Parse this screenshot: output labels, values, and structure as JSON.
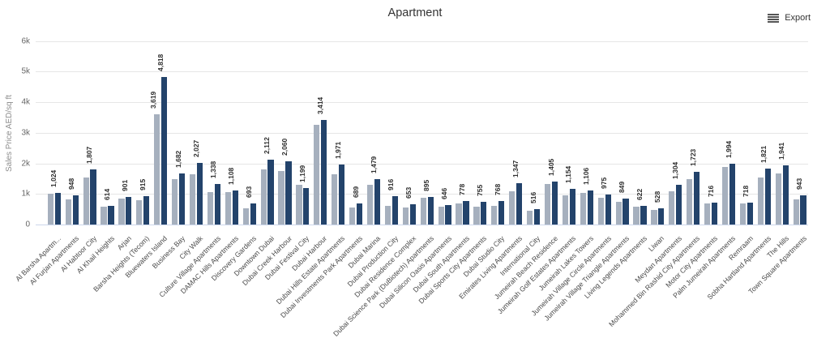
{
  "header": {
    "title": "Apartment",
    "export_label": "Export"
  },
  "chart_data": {
    "type": "bar",
    "title": "Apartment",
    "xlabel": "",
    "ylabel": "Sales Price AED/sq ft",
    "ylim": [
      0,
      6000
    ],
    "yticks": [
      {
        "value": 0,
        "label": "0"
      },
      {
        "value": 1000,
        "label": "1k"
      },
      {
        "value": 2000,
        "label": "2k"
      },
      {
        "value": 3000,
        "label": "3k"
      },
      {
        "value": 4000,
        "label": "4k"
      },
      {
        "value": 5000,
        "label": "5k"
      },
      {
        "value": 6000,
        "label": "6k"
      }
    ],
    "grid": true,
    "legend_position": "none",
    "categories": [
      "Al Barsha Apartm...",
      "Al Furjan Apartments",
      "Al Habtoor City",
      "Al Khail Heights",
      "Arjan",
      "Barsha Heights (Tecom)",
      "Bluewaters Island",
      "Business Bay",
      "City Walk",
      "Culture Village Apartments",
      "DAMAC Hills Apartments",
      "Discovery Gardens",
      "Downtown Dubai",
      "Dubai Creek Harbour",
      "Dubai Festival City",
      "Dubai Harbour",
      "Dubai Hills Estate Apartments",
      "Dubai Investments Park Apartments",
      "Dubai Marina",
      "Dubai Production City",
      "Dubai Residence Complex",
      "Dubai Science Park (DuBiotech) Apartments",
      "Dubai Silicon Oasis Apartments",
      "Dubai South Apartments",
      "Dubai Sports City Apartments",
      "Dubai Studio City",
      "Emirates Living Apartments",
      "International City",
      "Jumeirah Beach Residence",
      "Jumeirah Golf Estates Apartments",
      "Jumeirah Lakes Towers",
      "Jumeirah Village Circle Apartments",
      "Jumeirah Village Triangle Apartments",
      "Living Legends Apartments",
      "Liwan",
      "Meydan Apartments",
      "Mohammed Bin Rashid City Apartments",
      "Motor City Apartments",
      "Palm Jumeirah Apartments",
      "Remraam",
      "Sobha Hartland Apartments",
      "The Hills",
      "Town Square Apartments"
    ],
    "series": [
      {
        "name": "series-1-light",
        "color": "#a6b0be",
        "values": [
          1000,
          810,
          1550,
          595,
          845,
          800,
          3619,
          1475,
          1640,
          1065,
          1050,
          540,
          1790,
          1760,
          1310,
          3270,
          1640,
          570,
          1305,
          600,
          550,
          870,
          585,
          690,
          580,
          600,
          1100,
          445,
          1320,
          965,
          1030,
          875,
          735,
          575,
          465,
          1090,
          1475,
          685,
          1895,
          680,
          1550,
          1670,
          820
        ],
        "labels": [
          null,
          null,
          null,
          null,
          null,
          null,
          "3,619",
          null,
          null,
          null,
          null,
          null,
          null,
          null,
          null,
          null,
          null,
          null,
          null,
          null,
          null,
          null,
          null,
          null,
          null,
          null,
          null,
          null,
          null,
          null,
          null,
          null,
          null,
          null,
          null,
          null,
          null,
          null,
          null,
          null,
          null,
          null,
          null
        ]
      },
      {
        "name": "series-2-dark",
        "color": "#23436b",
        "values": [
          1024,
          948,
          1807,
          614,
          901,
          915,
          4818,
          1682,
          2027,
          1338,
          1108,
          693,
          2112,
          2060,
          1199,
          3414,
          1971,
          689,
          1479,
          916,
          653,
          895,
          646,
          778,
          755,
          768,
          1347,
          516,
          1405,
          1154,
          1106,
          975,
          849,
          622,
          528,
          1304,
          1723,
          716,
          1994,
          718,
          1821,
          1941,
          943
        ],
        "labels": [
          "1,024",
          "948",
          "1,807",
          "614",
          "901",
          "915",
          "4,818",
          "1,682",
          "2,027",
          "1,338",
          "1,108",
          "693",
          "2,112",
          "2,060",
          "1,199",
          "3,414",
          "1,971",
          "689",
          "1,479",
          "916",
          "653",
          "895",
          "646",
          "778",
          "755",
          "768",
          "1,347",
          "516",
          "1,405",
          "1,154",
          "1,106",
          "975",
          "849",
          "622",
          "528",
          "1,304",
          "1,723",
          "716",
          "1,994",
          "718",
          "1,821",
          "1,941",
          "943"
        ]
      }
    ]
  }
}
